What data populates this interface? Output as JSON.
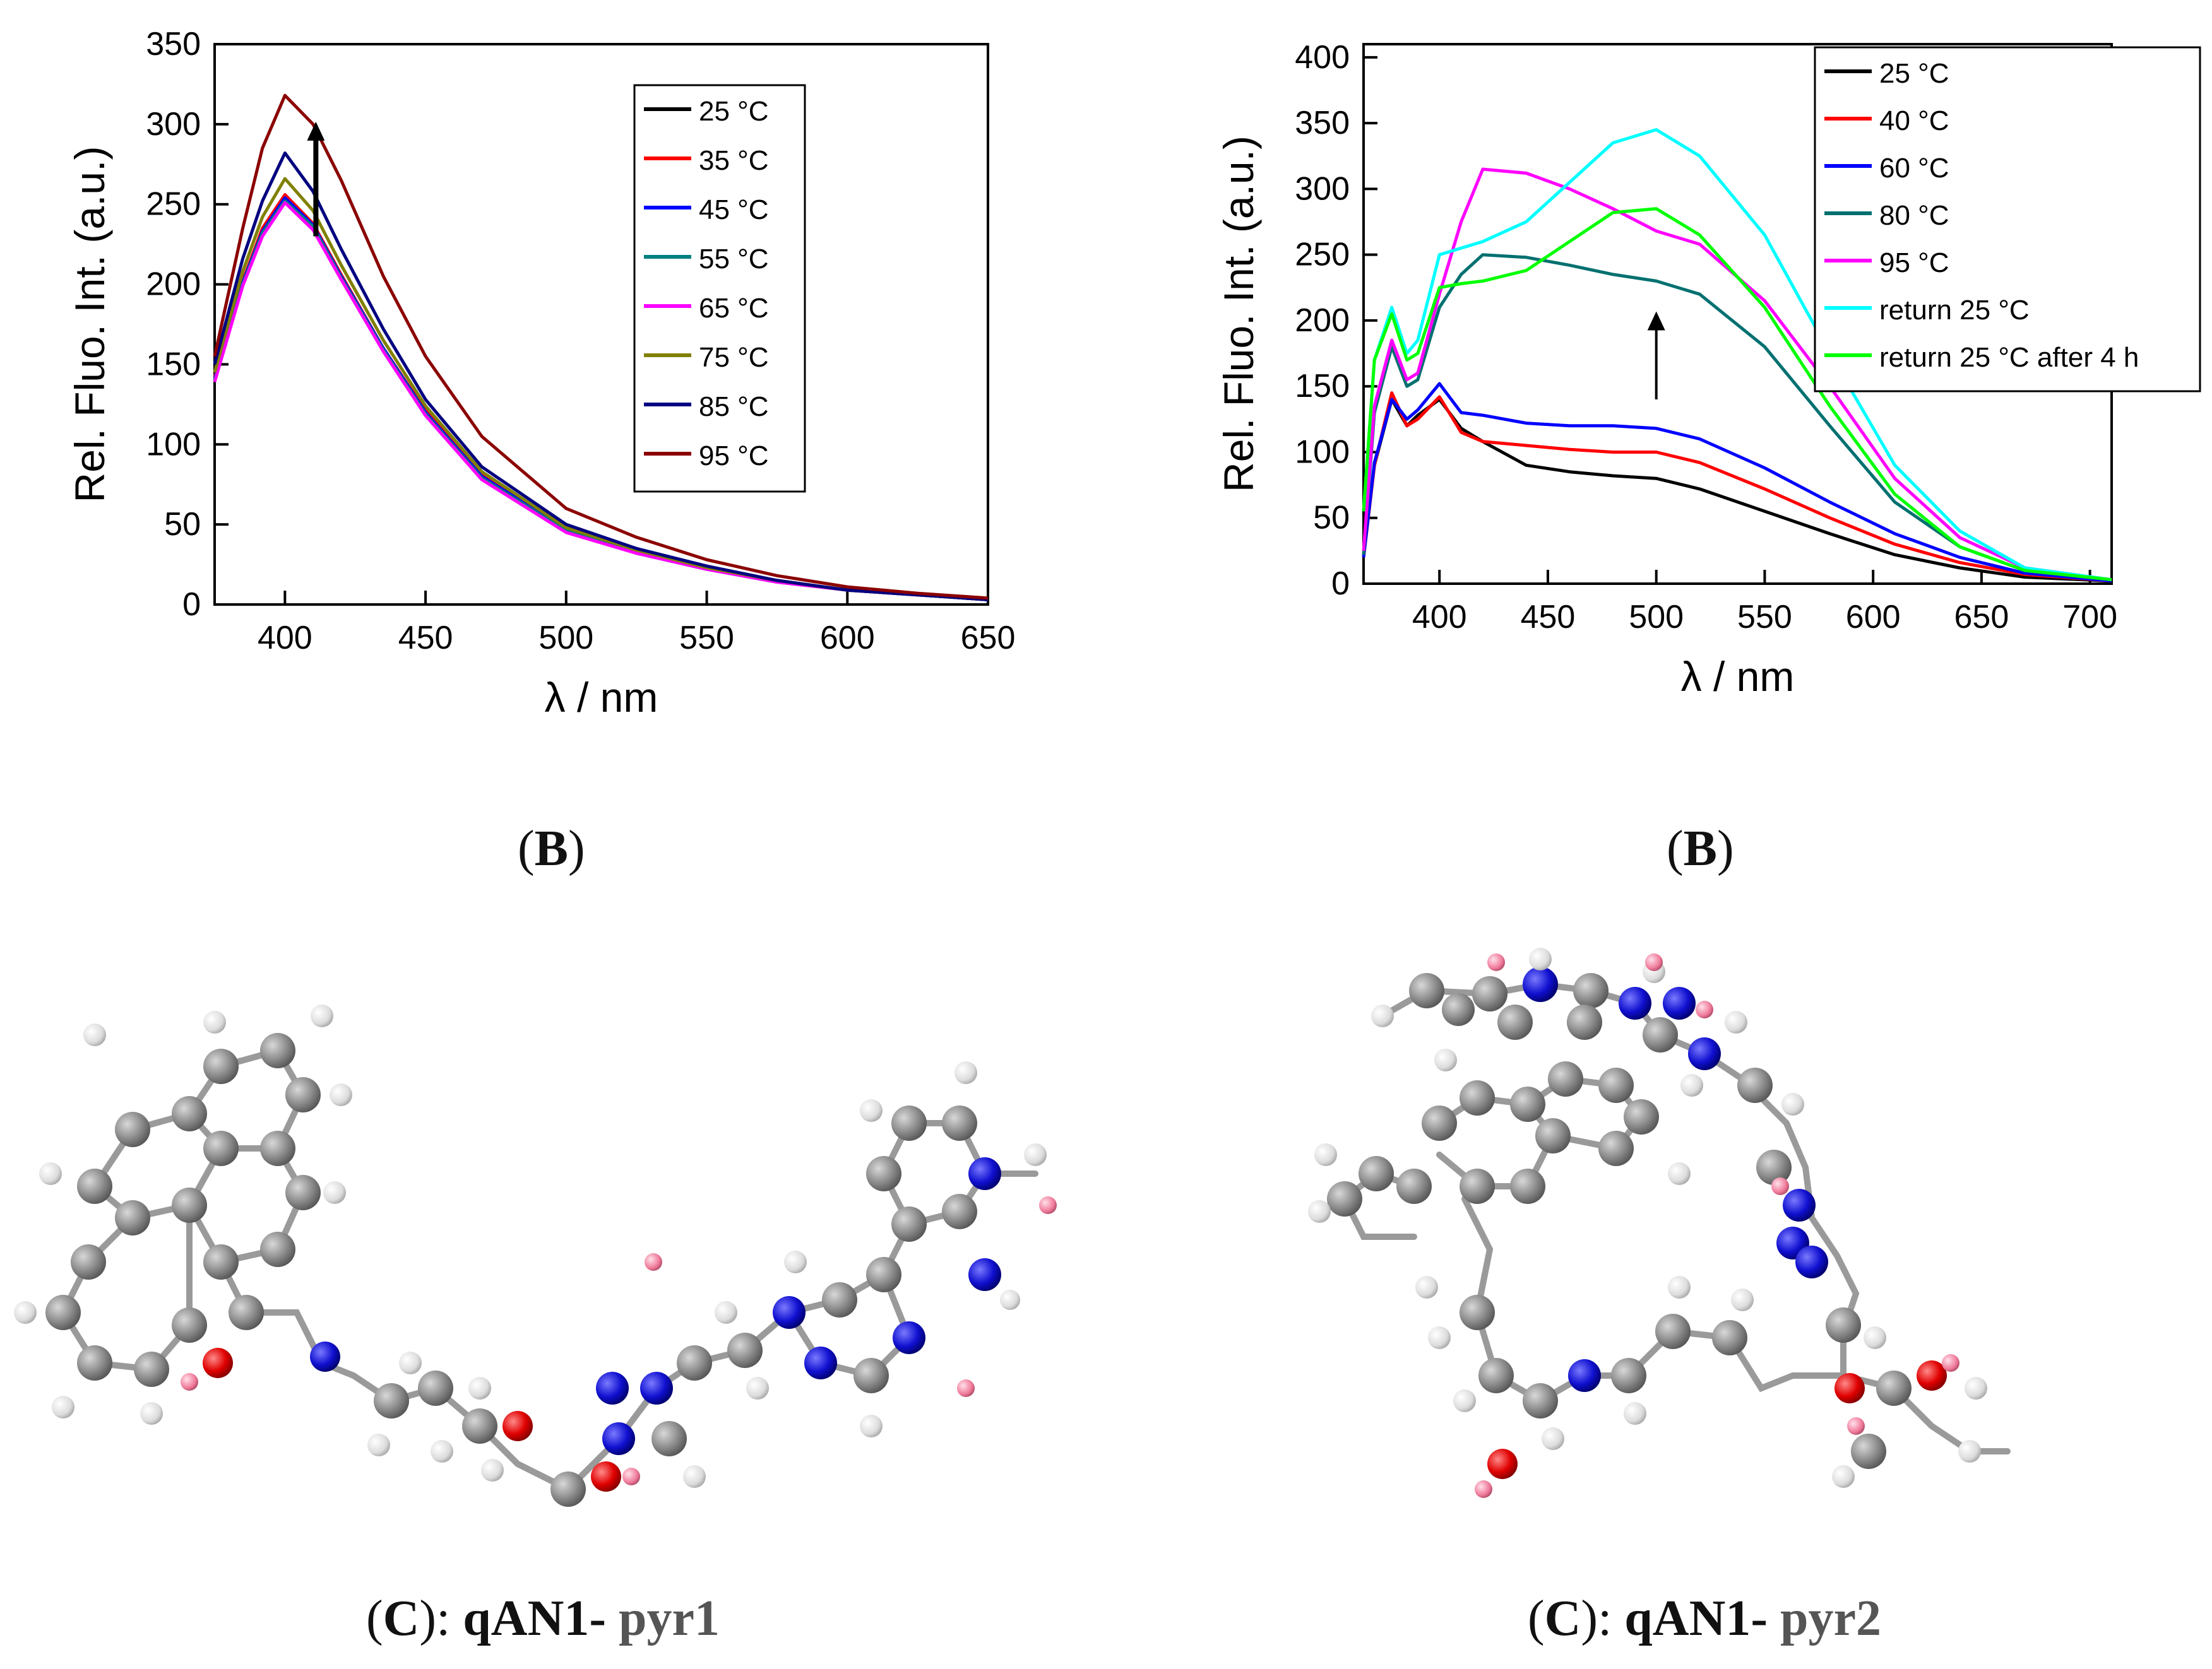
{
  "chart_data": [
    {
      "type": "line",
      "panel": "left",
      "title": "",
      "xlabel": "λ / nm",
      "ylabel": "Rel. Fluo. Int. (a.u.)",
      "xlim": [
        375,
        650
      ],
      "ylim": [
        0,
        350
      ],
      "xticks": [
        400,
        450,
        500,
        550,
        600,
        650
      ],
      "yticks": [
        0,
        50,
        100,
        150,
        200,
        250,
        300,
        350
      ],
      "legend_position": "top-right",
      "annotation": "upward arrow indicating increasing intensity with temperature",
      "series": [
        {
          "name": "25 °C",
          "color": "#000000",
          "x": [
            375,
            385,
            392,
            400,
            410,
            420,
            435,
            450,
            470,
            500,
            525,
            550,
            575,
            600,
            625,
            650
          ],
          "y": [
            140,
            200,
            232,
            252,
            236,
            205,
            160,
            120,
            80,
            47,
            33,
            23,
            15,
            9,
            6,
            3
          ]
        },
        {
          "name": "35 °C",
          "color": "#ff0000",
          "x": [
            375,
            385,
            392,
            400,
            410,
            420,
            435,
            450,
            470,
            500,
            525,
            550,
            575,
            600,
            625,
            650
          ],
          "y": [
            142,
            202,
            235,
            256,
            238,
            206,
            160,
            121,
            81,
            47,
            33,
            23,
            15,
            9,
            6,
            3
          ]
        },
        {
          "name": "45 °C",
          "color": "#0000ff",
          "x": [
            375,
            385,
            392,
            400,
            410,
            420,
            435,
            450,
            470,
            500,
            525,
            550,
            575,
            600,
            625,
            650
          ],
          "y": [
            141,
            201,
            233,
            254,
            237,
            205,
            160,
            120,
            80,
            47,
            33,
            23,
            15,
            9,
            6,
            3
          ]
        },
        {
          "name": "55 °C",
          "color": "#008080",
          "x": [
            375,
            385,
            392,
            400,
            410,
            420,
            435,
            450,
            470,
            500,
            525,
            550,
            575,
            600,
            625,
            650
          ],
          "y": [
            140,
            200,
            232,
            252,
            236,
            204,
            159,
            119,
            79,
            46,
            32,
            22,
            14,
            9,
            6,
            3
          ]
        },
        {
          "name": "65 °C",
          "color": "#ff00ff",
          "x": [
            375,
            385,
            392,
            400,
            410,
            420,
            435,
            450,
            470,
            500,
            525,
            550,
            575,
            600,
            625,
            650
          ],
          "y": [
            139,
            199,
            230,
            251,
            234,
            203,
            158,
            118,
            78,
            45,
            32,
            22,
            14,
            9,
            6,
            3
          ]
        },
        {
          "name": "75 °C",
          "color": "#808000",
          "x": [
            375,
            385,
            392,
            400,
            410,
            420,
            435,
            450,
            470,
            500,
            525,
            550,
            575,
            600,
            625,
            650
          ],
          "y": [
            145,
            208,
            242,
            266,
            246,
            212,
            165,
            124,
            83,
            48,
            34,
            23,
            15,
            9,
            6,
            3
          ]
        },
        {
          "name": "85 °C",
          "color": "#000080",
          "x": [
            375,
            385,
            392,
            400,
            410,
            420,
            435,
            450,
            470,
            500,
            525,
            550,
            575,
            600,
            625,
            650
          ],
          "y": [
            150,
            216,
            252,
            282,
            258,
            222,
            172,
            128,
            86,
            50,
            35,
            24,
            15,
            9,
            6,
            3
          ]
        },
        {
          "name": "95 °C",
          "color": "#8b0000",
          "x": [
            375,
            385,
            392,
            400,
            410,
            420,
            435,
            450,
            470,
            500,
            525,
            550,
            575,
            600,
            625,
            650
          ],
          "y": [
            155,
            235,
            285,
            318,
            300,
            265,
            205,
            155,
            105,
            60,
            42,
            28,
            18,
            11,
            7,
            4
          ]
        }
      ]
    },
    {
      "type": "line",
      "panel": "right",
      "title": "",
      "xlabel": "λ / nm",
      "ylabel": "Rel. Fluo. Int. (a.u.)",
      "xlim": [
        365,
        710
      ],
      "ylim": [
        0,
        410
      ],
      "xticks": [
        400,
        450,
        500,
        550,
        600,
        650,
        700
      ],
      "yticks": [
        0,
        50,
        100,
        150,
        200,
        250,
        300,
        350,
        400
      ],
      "legend_position": "top-right",
      "annotation": "upward arrow indicating increasing intensity with temperature",
      "series": [
        {
          "name": "25 °C",
          "color": "#000000",
          "x": [
            365,
            370,
            378,
            385,
            390,
            400,
            410,
            420,
            440,
            460,
            480,
            500,
            520,
            550,
            580,
            610,
            640,
            670,
            710
          ],
          "y": [
            20,
            90,
            140,
            120,
            128,
            140,
            118,
            108,
            90,
            85,
            82,
            80,
            72,
            55,
            38,
            22,
            12,
            5,
            2
          ]
        },
        {
          "name": "40 °C",
          "color": "#ff0000",
          "x": [
            365,
            370,
            378,
            385,
            390,
            400,
            410,
            420,
            440,
            460,
            480,
            500,
            520,
            550,
            580,
            610,
            640,
            670,
            710
          ],
          "y": [
            20,
            90,
            145,
            120,
            125,
            142,
            115,
            108,
            105,
            102,
            100,
            100,
            92,
            72,
            50,
            30,
            16,
            7,
            2
          ]
        },
        {
          "name": "60 °C",
          "color": "#0000ff",
          "x": [
            365,
            370,
            378,
            385,
            390,
            400,
            410,
            420,
            440,
            460,
            480,
            500,
            520,
            550,
            580,
            610,
            640,
            670,
            710
          ],
          "y": [
            20,
            92,
            140,
            125,
            132,
            152,
            130,
            128,
            122,
            120,
            120,
            118,
            110,
            88,
            62,
            38,
            20,
            8,
            2
          ]
        },
        {
          "name": "80 °C",
          "color": "#007070",
          "x": [
            365,
            370,
            378,
            385,
            390,
            400,
            410,
            420,
            440,
            460,
            480,
            500,
            520,
            550,
            580,
            610,
            640,
            670,
            710
          ],
          "y": [
            22,
            130,
            180,
            150,
            155,
            210,
            235,
            250,
            248,
            242,
            235,
            230,
            220,
            180,
            120,
            62,
            28,
            10,
            3
          ]
        },
        {
          "name": "95 °C",
          "color": "#ff00ff",
          "x": [
            365,
            370,
            378,
            385,
            390,
            400,
            410,
            420,
            440,
            460,
            480,
            500,
            520,
            550,
            580,
            610,
            640,
            670,
            710
          ],
          "y": [
            25,
            135,
            185,
            155,
            160,
            220,
            275,
            315,
            312,
            300,
            285,
            268,
            258,
            215,
            150,
            80,
            35,
            12,
            3
          ]
        },
        {
          "name": "return 25 °C",
          "color": "#00ffff",
          "x": [
            365,
            370,
            378,
            385,
            390,
            400,
            410,
            420,
            440,
            460,
            480,
            500,
            520,
            550,
            580,
            610,
            640,
            670,
            710
          ],
          "y": [
            55,
            170,
            210,
            175,
            185,
            250,
            255,
            260,
            275,
            305,
            335,
            345,
            325,
            265,
            175,
            90,
            40,
            12,
            3
          ]
        },
        {
          "name": "return 25 °C after 4 h",
          "color": "#00ff00",
          "x": [
            365,
            370,
            378,
            385,
            390,
            400,
            410,
            420,
            440,
            460,
            480,
            500,
            520,
            550,
            580,
            610,
            640,
            670,
            710
          ],
          "y": [
            55,
            170,
            205,
            170,
            175,
            225,
            228,
            230,
            238,
            260,
            282,
            285,
            265,
            210,
            135,
            68,
            28,
            10,
            3
          ]
        }
      ]
    }
  ],
  "captions": {
    "top_left": {
      "open": "(",
      "letter": "B",
      "close": ")"
    },
    "top_right": {
      "open": "(",
      "letter": "B",
      "close": ")"
    },
    "bottom_left": {
      "prefix": "(",
      "letter": "C",
      "suffix": "): ",
      "mol": "qAN1- ",
      "part": "pyr1"
    },
    "bottom_right": {
      "prefix": "(",
      "letter": "C",
      "suffix": "): ",
      "mol": "qAN1- ",
      "part": "pyr2"
    }
  }
}
